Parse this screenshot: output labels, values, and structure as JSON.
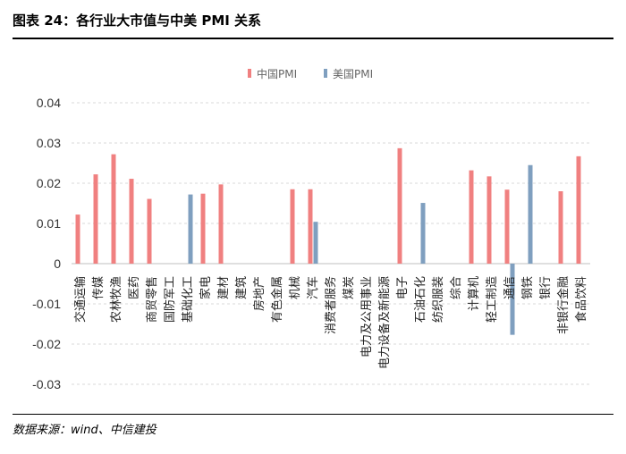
{
  "header": {
    "title": "图表 24：各行业大市值与中美 PMI 关系"
  },
  "footer": {
    "source": "数据来源：wind、中信建投"
  },
  "colors": {
    "china": "#f08080",
    "us": "#7f9fbf",
    "grid": "#d9d9d9",
    "axis": "#bfbfbf"
  },
  "chart_data": {
    "type": "bar",
    "title": "",
    "xlabel": "",
    "ylabel": "",
    "ylim": [
      -0.03,
      0.04
    ],
    "yticks": [
      "0.04",
      "0.03",
      "0.02",
      "0.01",
      "0",
      "-0.01",
      "-0.02",
      "-0.03"
    ],
    "ytick_values": [
      0.04,
      0.03,
      0.02,
      0.01,
      0,
      -0.01,
      -0.02,
      -0.03
    ],
    "legend_position": "top-center",
    "categories": [
      "交通运输",
      "传媒",
      "农林牧渔",
      "医药",
      "商贸零售",
      "国防军工",
      "基础化工",
      "家电",
      "建材",
      "建筑",
      "房地产",
      "有色金属",
      "机械",
      "汽车",
      "消费者服务",
      "煤炭",
      "电力及公用事业",
      "电力设备及新能源",
      "电子",
      "石油石化",
      "纺织服装",
      "综合",
      "计算机",
      "轻工制造",
      "通信",
      "钢铁",
      "银行",
      "非银行金融",
      "食品饮料"
    ],
    "series": [
      {
        "name": "中国PMI",
        "values": [
          0.0122,
          0.0222,
          0.0272,
          0.0211,
          0.0161,
          null,
          null,
          0.0174,
          0.0197,
          null,
          null,
          null,
          0.0185,
          0.0185,
          null,
          null,
          null,
          null,
          0.0287,
          null,
          null,
          null,
          0.0232,
          0.0217,
          0.0184,
          null,
          null,
          0.018,
          0.0267
        ]
      },
      {
        "name": "美国PMI",
        "values": [
          null,
          null,
          null,
          null,
          null,
          null,
          0.0172,
          null,
          null,
          null,
          null,
          null,
          null,
          0.0104,
          null,
          null,
          null,
          null,
          null,
          0.0151,
          null,
          null,
          null,
          null,
          -0.0177,
          0.0245,
          null,
          null,
          null
        ]
      }
    ]
  }
}
